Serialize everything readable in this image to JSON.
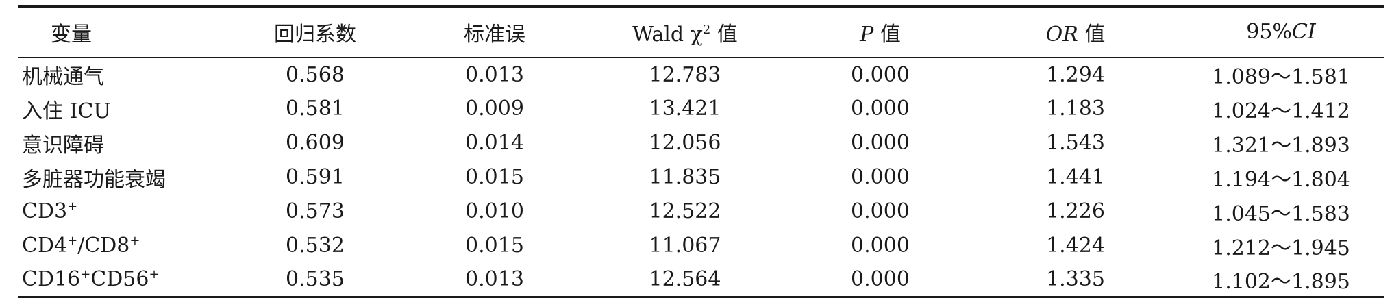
{
  "header": {
    "variable": "变量",
    "coef": "回归系数",
    "se": "标准误",
    "wald_prefix": "Wald χ",
    "wald_sup": "2",
    "wald_suffix": " 值",
    "p_italic": "P",
    "p_suffix": " 值",
    "or_italic": "OR",
    "or_suffix": " 值",
    "ci_prefix": "95%",
    "ci_italic": "CI"
  },
  "rows": [
    {
      "var": "机械通气",
      "var_sup": "",
      "var_mid": "",
      "var_sup2": "",
      "coef": "0.568",
      "se": "0.013",
      "wald": "12.783",
      "p": "0.000",
      "or": "1.294",
      "ci": "1.089～1.581"
    },
    {
      "var": "入住 ICU",
      "var_sup": "",
      "var_mid": "",
      "var_sup2": "",
      "coef": "0.581",
      "se": "0.009",
      "wald": "13.421",
      "p": "0.000",
      "or": "1.183",
      "ci": "1.024～1.412"
    },
    {
      "var": "意识障碍",
      "var_sup": "",
      "var_mid": "",
      "var_sup2": "",
      "coef": "0.609",
      "se": "0.014",
      "wald": "12.056",
      "p": "0.000",
      "or": "1.543",
      "ci": "1.321～1.893"
    },
    {
      "var": "多脏器功能衰竭",
      "var_sup": "",
      "var_mid": "",
      "var_sup2": "",
      "coef": "0.591",
      "se": "0.015",
      "wald": "11.835",
      "p": "0.000",
      "or": "1.441",
      "ci": "1.194～1.804"
    },
    {
      "var": "CD3",
      "var_sup": "+",
      "var_mid": "",
      "var_sup2": "",
      "coef": "0.573",
      "se": "0.010",
      "wald": "12.522",
      "p": "0.000",
      "or": "1.226",
      "ci": "1.045～1.583"
    },
    {
      "var": "CD4",
      "var_sup": "+",
      "var_mid": "/CD8",
      "var_sup2": "+",
      "coef": "0.532",
      "se": "0.015",
      "wald": "11.067",
      "p": "0.000",
      "or": "1.424",
      "ci": "1.212～1.945"
    },
    {
      "var": "CD16",
      "var_sup": "+",
      "var_mid": "CD56",
      "var_sup2": "+",
      "coef": "0.535",
      "se": "0.013",
      "wald": "12.564",
      "p": "0.000",
      "or": "1.335",
      "ci": "1.102～1.895"
    }
  ]
}
